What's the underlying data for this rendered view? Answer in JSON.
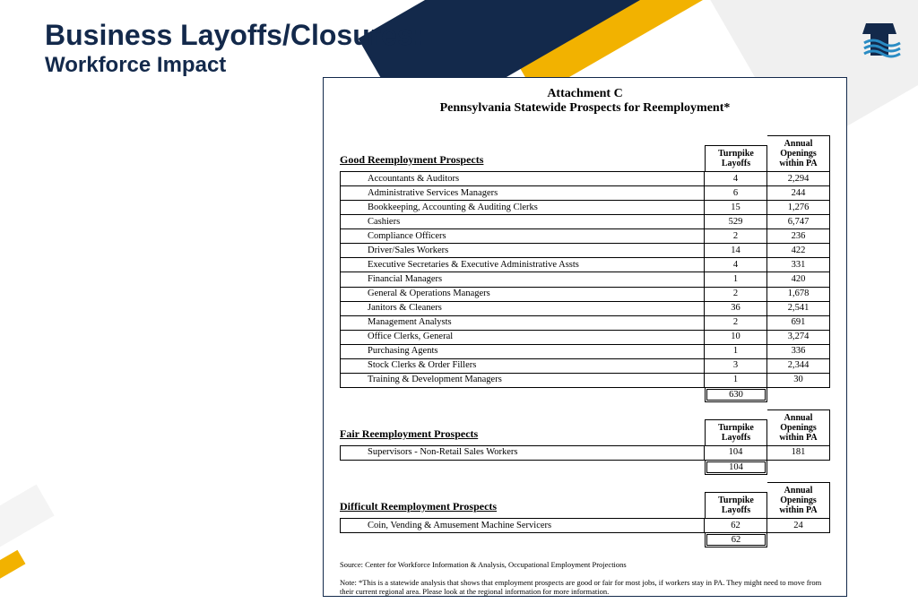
{
  "slide": {
    "title_main": "Business Layoffs/Closures:",
    "title_sub": "Workforce Impact"
  },
  "document": {
    "attachment_label": "Attachment C",
    "heading": "Pennsylvania Statewide Prospects for Reemployment*",
    "col_layoffs": "Turnpike Layoffs",
    "col_openings": "Annual Openings within PA",
    "sections": [
      {
        "label": "Good Reemployment Prospects",
        "rows": [
          {
            "occ": "Accountants & Auditors",
            "layoffs": "4",
            "openings": "2,294"
          },
          {
            "occ": "Administrative Services Managers",
            "layoffs": "6",
            "openings": "244"
          },
          {
            "occ": "Bookkeeping, Accounting & Auditing Clerks",
            "layoffs": "15",
            "openings": "1,276"
          },
          {
            "occ": "Cashiers",
            "layoffs": "529",
            "openings": "6,747"
          },
          {
            "occ": "Compliance Officers",
            "layoffs": "2",
            "openings": "236"
          },
          {
            "occ": "Driver/Sales Workers",
            "layoffs": "14",
            "openings": "422"
          },
          {
            "occ": "Executive Secretaries & Executive Administrative Assts",
            "layoffs": "4",
            "openings": "331"
          },
          {
            "occ": "Financial Managers",
            "layoffs": "1",
            "openings": "420"
          },
          {
            "occ": "General & Operations Managers",
            "layoffs": "2",
            "openings": "1,678"
          },
          {
            "occ": "Janitors & Cleaners",
            "layoffs": "36",
            "openings": "2,541"
          },
          {
            "occ": "Management Analysts",
            "layoffs": "2",
            "openings": "691"
          },
          {
            "occ": "Office Clerks, General",
            "layoffs": "10",
            "openings": "3,274"
          },
          {
            "occ": "Purchasing Agents",
            "layoffs": "1",
            "openings": "336"
          },
          {
            "occ": "Stock Clerks & Order Fillers",
            "layoffs": "3",
            "openings": "2,344"
          },
          {
            "occ": "Training & Development Managers",
            "layoffs": "1",
            "openings": "30"
          }
        ],
        "total": "630"
      },
      {
        "label": "Fair Reemployment Prospects",
        "rows": [
          {
            "occ": "Supervisors - Non-Retail Sales Workers",
            "layoffs": "104",
            "openings": "181"
          }
        ],
        "total": "104"
      },
      {
        "label": "Difficult Reemployment Prospects",
        "rows": [
          {
            "occ": "Coin, Vending & Amusement Machine Servicers",
            "layoffs": "62",
            "openings": "24"
          }
        ],
        "total": "62"
      }
    ],
    "source": "Source:  Center for Workforce Information & Analysis, Occupational Employment Projections",
    "note": "Note: *This is a statewide analysis that shows that employment prospects are good or fair for most jobs, if workers stay in PA. They might need to move from their current regional area. Please look at the regional information for more information."
  },
  "colors": {
    "navy": "#13294b",
    "gold": "#f2b200",
    "grey": "#f0f0f0",
    "white": "#ffffff",
    "black": "#000000"
  }
}
